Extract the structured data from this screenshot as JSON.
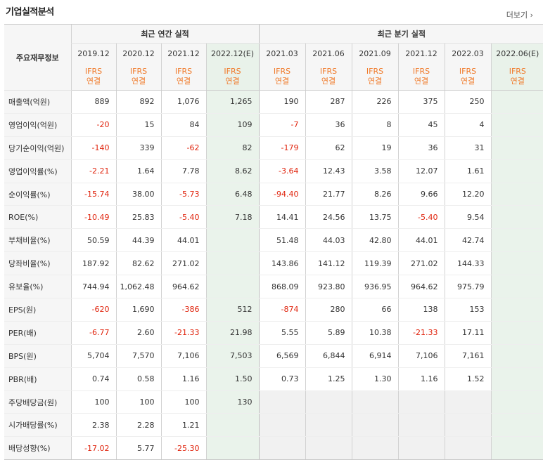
{
  "page": {
    "title": "기업실적분석",
    "more_label": "더보기",
    "more_icon": "chevron-right-icon"
  },
  "header": {
    "label_col": "주요재무정보",
    "annual_group": "최근 연간 실적",
    "quarter_group": "최근 분기 실적",
    "annual_periods": [
      "2019.12",
      "2020.12",
      "2021.12",
      "2022.12(E)"
    ],
    "quarter_periods": [
      "2021.03",
      "2021.06",
      "2021.09",
      "2021.12",
      "2022.03",
      "2022.06(E)"
    ],
    "ifrs_top": "IFRS",
    "ifrs_bottom": "연결"
  },
  "rows": [
    {
      "label": "매출액(억원)",
      "values": [
        "889",
        "892",
        "1,076",
        "1,265",
        "190",
        "287",
        "226",
        "375",
        "250",
        ""
      ]
    },
    {
      "label": "영업이익(억원)",
      "values": [
        "-20",
        "15",
        "84",
        "109",
        "-7",
        "36",
        "8",
        "45",
        "4",
        ""
      ]
    },
    {
      "label": "당기순이익(억원)",
      "values": [
        "-140",
        "339",
        "-62",
        "82",
        "-179",
        "62",
        "19",
        "36",
        "31",
        ""
      ]
    },
    {
      "label": "영업이익률(%)",
      "values": [
        "-2.21",
        "1.64",
        "7.78",
        "8.62",
        "-3.64",
        "12.43",
        "3.58",
        "12.07",
        "1.61",
        ""
      ]
    },
    {
      "label": "순이익률(%)",
      "values": [
        "-15.74",
        "38.00",
        "-5.73",
        "6.48",
        "-94.40",
        "21.77",
        "8.26",
        "9.66",
        "12.20",
        ""
      ]
    },
    {
      "label": "ROE(%)",
      "values": [
        "-10.49",
        "25.83",
        "-5.40",
        "7.18",
        "14.41",
        "24.56",
        "13.75",
        "-5.40",
        "9.54",
        ""
      ]
    },
    {
      "label": "부채비율(%)",
      "values": [
        "50.59",
        "44.39",
        "44.01",
        "",
        "51.48",
        "44.03",
        "42.80",
        "44.01",
        "42.74",
        ""
      ]
    },
    {
      "label": "당좌비율(%)",
      "values": [
        "187.92",
        "82.62",
        "271.02",
        "",
        "143.86",
        "141.12",
        "119.39",
        "271.02",
        "144.33",
        ""
      ]
    },
    {
      "label": "유보율(%)",
      "values": [
        "744.94",
        "1,062.48",
        "964.62",
        "",
        "868.09",
        "923.80",
        "936.95",
        "964.62",
        "975.79",
        ""
      ]
    },
    {
      "label": "EPS(원)",
      "values": [
        "-620",
        "1,690",
        "-386",
        "512",
        "-874",
        "280",
        "66",
        "138",
        "153",
        ""
      ]
    },
    {
      "label": "PER(배)",
      "values": [
        "-6.77",
        "2.60",
        "-21.33",
        "21.98",
        "5.55",
        "5.89",
        "10.38",
        "-21.33",
        "17.11",
        ""
      ]
    },
    {
      "label": "BPS(원)",
      "values": [
        "5,704",
        "7,570",
        "7,106",
        "7,503",
        "6,569",
        "6,844",
        "6,914",
        "7,106",
        "7,161",
        ""
      ]
    },
    {
      "label": "PBR(배)",
      "values": [
        "0.74",
        "0.58",
        "1.16",
        "1.50",
        "0.73",
        "1.25",
        "1.30",
        "1.16",
        "1.52",
        ""
      ]
    },
    {
      "label": "주당배당금(원)",
      "values": [
        "100",
        "100",
        "100",
        "130",
        "",
        "",
        "",
        "",
        "",
        ""
      ]
    },
    {
      "label": "시가배당률(%)",
      "values": [
        "2.38",
        "2.28",
        "1.21",
        "",
        "",
        "",
        "",
        "",
        "",
        ""
      ]
    },
    {
      "label": "배당성향(%)",
      "values": [
        "-17.02",
        "5.77",
        "-25.30",
        "",
        "",
        "",
        "",
        "",
        "",
        ""
      ]
    }
  ],
  "colors": {
    "negative": "#e0230c",
    "ifrs": "#f07a2a",
    "estimate_bg": "#eaf3eb",
    "header_bg": "#f6f6f6"
  }
}
